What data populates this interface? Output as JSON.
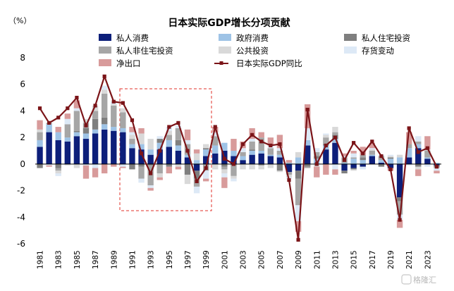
{
  "chart_data": {
    "type": "bar",
    "title": "日本实际GDP增长分项贡献",
    "unit_label": "（%）",
    "ylim": [
      -6,
      8
    ],
    "yticks": [
      -6,
      -4,
      -2,
      0,
      2,
      4,
      6,
      8
    ],
    "legend_position": "top",
    "grid": false,
    "x": [
      1981,
      1982,
      1983,
      1984,
      1985,
      1986,
      1987,
      1988,
      1989,
      1990,
      1991,
      1992,
      1993,
      1994,
      1995,
      1996,
      1997,
      1998,
      1999,
      2000,
      2001,
      2002,
      2003,
      2004,
      2005,
      2006,
      2007,
      2008,
      2009,
      2010,
      2011,
      2012,
      2013,
      2014,
      2015,
      2016,
      2017,
      2018,
      2019,
      2020,
      2021,
      2022,
      2023,
      2024
    ],
    "x_tick_labels": [
      "1981",
      "1983",
      "1985",
      "1987",
      "1989",
      "1991",
      "1993",
      "1995",
      "1997",
      "1999",
      "2001",
      "2003",
      "2005",
      "2007",
      "2009",
      "2011",
      "2013",
      "2015",
      "2017",
      "2019",
      "2021",
      "2023"
    ],
    "series": [
      {
        "name": "私人消费",
        "kind": "bar",
        "color": "#0d1f7a",
        "values": [
          1.3,
          2.4,
          1.8,
          1.7,
          2.1,
          1.9,
          2.3,
          2.6,
          2.5,
          2.4,
          1.2,
          1.1,
          0.7,
          1.1,
          1.3,
          1.0,
          0.5,
          -0.5,
          0.6,
          0.8,
          1.0,
          0.6,
          0.3,
          0.7,
          0.8,
          0.6,
          0.5,
          -0.6,
          -0.5,
          1.4,
          0.0,
          1.1,
          1.6,
          -0.5,
          -0.3,
          -0.2,
          0.6,
          0.1,
          -0.3,
          -2.5,
          0.5,
          1.2,
          0.4,
          -0.1
        ]
      },
      {
        "name": "政府消费",
        "kind": "bar",
        "color": "#9ec3e6",
        "values": [
          0.5,
          0.6,
          0.6,
          0.3,
          0.3,
          0.4,
          0.3,
          0.4,
          0.3,
          0.3,
          0.3,
          0.4,
          0.4,
          0.5,
          0.5,
          0.4,
          0.2,
          0.3,
          0.5,
          0.6,
          0.6,
          0.4,
          0.3,
          0.3,
          0.2,
          0.1,
          0.2,
          0.1,
          0.5,
          0.4,
          0.4,
          0.3,
          0.3,
          0.1,
          0.4,
          0.3,
          0.1,
          0.2,
          0.4,
          0.5,
          0.7,
          0.3,
          0.1,
          0.1
        ]
      },
      {
        "name": "私人住宅投资",
        "kind": "bar",
        "color": "#7f7f7f",
        "values": [
          -0.3,
          0.0,
          -0.3,
          0.0,
          0.1,
          0.4,
          0.8,
          0.5,
          0.0,
          0.0,
          -0.4,
          -0.2,
          -0.1,
          0.3,
          -0.2,
          0.4,
          -0.8,
          -0.6,
          0.1,
          0.0,
          -0.2,
          -0.1,
          0.0,
          0.1,
          -0.1,
          0.0,
          -0.5,
          0.0,
          -0.6,
          -0.2,
          0.2,
          0.1,
          0.3,
          -0.2,
          -0.1,
          0.2,
          0.0,
          -0.2,
          0.1,
          -0.3,
          0.0,
          -0.2,
          0.0,
          -0.1
        ]
      },
      {
        "name": "私人非住宅投资",
        "kind": "bar",
        "color": "#a6a6a6",
        "values": [
          0.6,
          0.1,
          -0.2,
          1.0,
          1.5,
          0.4,
          0.6,
          1.8,
          1.6,
          1.2,
          0.4,
          -0.9,
          -1.5,
          -0.7,
          0.4,
          0.9,
          0.8,
          -0.6,
          -0.5,
          0.7,
          -0.2,
          -0.8,
          0.3,
          0.6,
          1.0,
          0.5,
          0.3,
          -0.2,
          -2.0,
          -0.1,
          0.3,
          0.5,
          0.2,
          0.4,
          0.1,
          0.2,
          0.3,
          0.3,
          0.0,
          -1.0,
          0.3,
          0.2,
          0.5,
          -0.1
        ]
      },
      {
        "name": "公共投资",
        "kind": "bar",
        "color": "#d9d9d9",
        "values": [
          0.2,
          0.0,
          -0.2,
          -0.1,
          -0.3,
          0.3,
          0.4,
          0.3,
          0.1,
          0.3,
          0.3,
          0.8,
          0.8,
          -0.3,
          0.3,
          -0.2,
          -0.7,
          0.5,
          0.3,
          -0.4,
          -0.3,
          -0.2,
          -0.4,
          -0.4,
          -0.3,
          -0.3,
          -0.1,
          -0.2,
          0.4,
          0.0,
          -0.2,
          0.2,
          0.4,
          0.0,
          -0.1,
          0.0,
          0.1,
          0.0,
          0.1,
          0.2,
          0.0,
          -0.2,
          0.1,
          0.0
        ]
      },
      {
        "name": "存货变动",
        "kind": "bar",
        "color": "#dde9f6",
        "values": [
          0.0,
          -0.1,
          -0.2,
          0.4,
          0.2,
          -0.1,
          -0.3,
          0.3,
          0.2,
          -0.2,
          0.2,
          -0.3,
          -0.2,
          0.2,
          0.3,
          0.2,
          0.3,
          -0.5,
          -0.6,
          0.3,
          -0.3,
          -0.2,
          0.3,
          0.2,
          0.0,
          0.2,
          0.2,
          -0.1,
          -1.2,
          0.9,
          0.3,
          0.1,
          -0.4,
          0.1,
          0.3,
          -0.2,
          0.1,
          0.1,
          0.1,
          -0.4,
          -0.1,
          0.4,
          -0.2,
          -0.2
        ]
      },
      {
        "name": "净出口",
        "kind": "bar",
        "color": "#d89b9b",
        "values": [
          0.7,
          -0.1,
          0.4,
          0.4,
          0.6,
          -1.0,
          -0.7,
          -0.7,
          -0.2,
          -0.1,
          0.4,
          0.4,
          -0.2,
          -0.2,
          -0.5,
          -0.2,
          0.8,
          0.3,
          -0.2,
          0.4,
          -0.8,
          0.9,
          0.5,
          0.8,
          0.4,
          0.6,
          1.0,
          0.2,
          -0.8,
          1.8,
          -0.8,
          -0.8,
          -0.4,
          0.2,
          0.2,
          0.6,
          0.4,
          0.0,
          -0.2,
          -0.6,
          0.9,
          -0.5,
          1.0,
          -0.2
        ]
      },
      {
        "name": "日本实际GDP同比",
        "kind": "line",
        "color": "#7b1418",
        "values": [
          4.2,
          3.1,
          3.5,
          4.2,
          5.0,
          2.9,
          4.4,
          6.6,
          4.7,
          4.6,
          3.3,
          0.8,
          -0.7,
          1.0,
          2.8,
          3.1,
          1.0,
          -1.3,
          -0.3,
          2.8,
          0.4,
          0.0,
          1.5,
          2.2,
          1.7,
          1.4,
          1.5,
          -1.2,
          -5.7,
          4.1,
          0.0,
          1.4,
          2.0,
          0.3,
          1.6,
          0.8,
          1.7,
          0.6,
          -0.4,
          -4.2,
          2.7,
          0.9,
          1.2,
          -0.2
        ]
      }
    ]
  },
  "watermark": "格隆汇"
}
